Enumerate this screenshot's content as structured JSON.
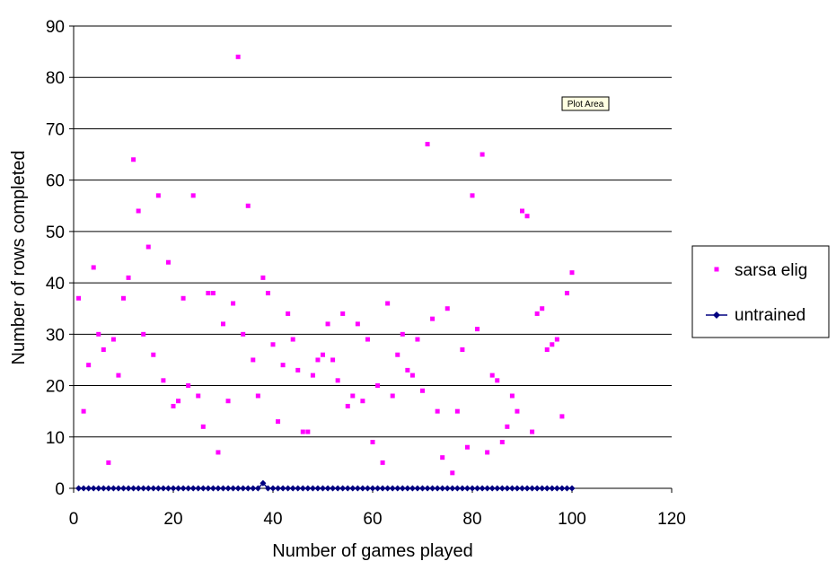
{
  "chart_data": {
    "type": "scatter",
    "xlabel": "Number of games played",
    "ylabel": "Number of rows completed",
    "xlim": [
      0,
      120
    ],
    "ylim": [
      0,
      90
    ],
    "x_ticks": [
      0,
      20,
      40,
      60,
      80,
      100,
      120
    ],
    "y_ticks": [
      0,
      10,
      20,
      30,
      40,
      50,
      60,
      70,
      80,
      90
    ],
    "grid": "horizontal major gridlines",
    "legend_position": "right",
    "annotation": "Plot Area",
    "series": [
      {
        "name": "sarsa elig",
        "color": "#ff00ff",
        "marker": "square",
        "line": false,
        "x": [
          1,
          2,
          3,
          4,
          5,
          6,
          7,
          8,
          9,
          10,
          11,
          12,
          13,
          14,
          15,
          16,
          17,
          18,
          19,
          20,
          21,
          22,
          23,
          24,
          25,
          26,
          27,
          28,
          29,
          30,
          31,
          32,
          33,
          34,
          35,
          36,
          37,
          38,
          39,
          40,
          41,
          42,
          43,
          44,
          45,
          46,
          47,
          48,
          49,
          50,
          51,
          52,
          53,
          54,
          55,
          56,
          57,
          58,
          59,
          60,
          61,
          62,
          63,
          64,
          65,
          66,
          67,
          68,
          69,
          70,
          71,
          72,
          73,
          74,
          75,
          76,
          77,
          78,
          79,
          80,
          81,
          82,
          83,
          84,
          85,
          86,
          87,
          88,
          89,
          90,
          91,
          92,
          93,
          94,
          95,
          96,
          97,
          98,
          99,
          100
        ],
        "y": [
          37,
          15,
          24,
          43,
          30,
          27,
          5,
          29,
          22,
          37,
          41,
          64,
          54,
          30,
          47,
          26,
          57,
          21,
          44,
          16,
          17,
          37,
          20,
          57,
          18,
          12,
          38,
          38,
          7,
          32,
          17,
          36,
          84,
          30,
          55,
          25,
          18,
          41,
          38,
          28,
          13,
          24,
          34,
          29,
          23,
          11,
          11,
          22,
          25,
          26,
          32,
          25,
          21,
          34,
          16,
          18,
          32,
          17,
          29,
          9,
          20,
          5,
          36,
          18,
          26,
          30,
          23,
          22,
          29,
          19,
          67,
          33,
          15,
          6,
          35,
          3,
          15,
          27,
          8,
          57,
          31,
          65,
          7,
          22,
          21,
          9,
          12,
          18,
          15,
          54,
          53,
          11,
          34,
          35,
          27,
          28,
          29,
          14,
          38,
          42
        ]
      },
      {
        "name": "untrained",
        "color": "#000080",
        "marker": "diamond",
        "line": true,
        "x": [
          1,
          2,
          3,
          4,
          5,
          6,
          7,
          8,
          9,
          10,
          11,
          12,
          13,
          14,
          15,
          16,
          17,
          18,
          19,
          20,
          21,
          22,
          23,
          24,
          25,
          26,
          27,
          28,
          29,
          30,
          31,
          32,
          33,
          34,
          35,
          36,
          37,
          38,
          39,
          40,
          41,
          42,
          43,
          44,
          45,
          46,
          47,
          48,
          49,
          50,
          51,
          52,
          53,
          54,
          55,
          56,
          57,
          58,
          59,
          60,
          61,
          62,
          63,
          64,
          65,
          66,
          67,
          68,
          69,
          70,
          71,
          72,
          73,
          74,
          75,
          76,
          77,
          78,
          79,
          80,
          81,
          82,
          83,
          84,
          85,
          86,
          87,
          88,
          89,
          90,
          91,
          92,
          93,
          94,
          95,
          96,
          97,
          98,
          99,
          100
        ],
        "y": [
          0,
          0,
          0,
          0,
          0,
          0,
          0,
          0,
          0,
          0,
          0,
          0,
          0,
          0,
          0,
          0,
          0,
          0,
          0,
          0,
          0,
          0,
          0,
          0,
          0,
          0,
          0,
          0,
          0,
          0,
          0,
          0,
          0,
          0,
          0,
          0,
          0,
          1,
          0,
          0,
          0,
          0,
          0,
          0,
          0,
          0,
          0,
          0,
          0,
          0,
          0,
          0,
          0,
          0,
          0,
          0,
          0,
          0,
          0,
          0,
          0,
          0,
          0,
          0,
          0,
          0,
          0,
          0,
          0,
          0,
          0,
          0,
          0,
          0,
          0,
          0,
          0,
          0,
          0,
          0,
          0,
          0,
          0,
          0,
          0,
          0,
          0,
          0,
          0,
          0,
          0,
          0,
          0,
          0,
          0,
          0,
          0,
          0,
          0,
          0
        ]
      }
    ]
  }
}
